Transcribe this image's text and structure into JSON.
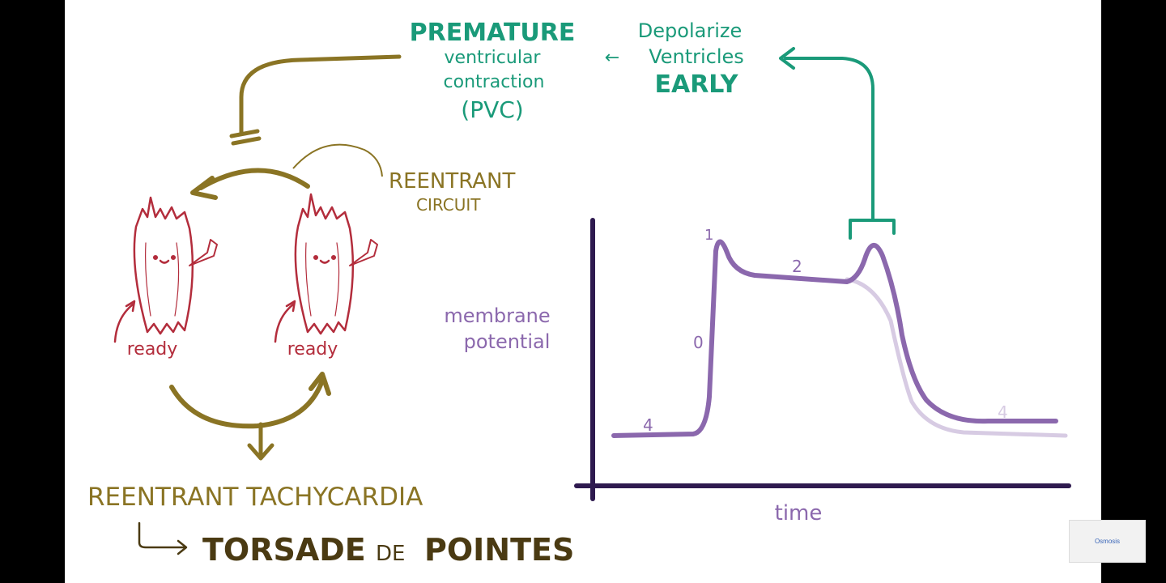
{
  "colors": {
    "teal": "#1a9a79",
    "gold": "#8a7424",
    "crimson": "#b32d3c",
    "purple": "#8b68ad",
    "purple_light": "#d7cbe3",
    "axis": "#2e1a4f",
    "dark_gold": "#4a3a12"
  },
  "pvc": {
    "line1": "PREMATURE",
    "line2": "ventricular",
    "line3": "contraction",
    "line4": "(PVC)"
  },
  "depolarize": {
    "line1": "Depolarize",
    "line2": "Ventricles",
    "line3": "EARLY"
  },
  "arrow_left_glyph": "←",
  "circuit": {
    "label_line1": "REENTRANT",
    "label_line2": "CIRCUIT",
    "cell_left_label": "ready",
    "cell_right_label": "ready"
  },
  "bottom": {
    "reentrant_tachycardia": "REENTRANT TACHYCARDIA",
    "torsade": "TORSADE",
    "de": "DE",
    "pointes": "POINTES"
  },
  "graph": {
    "ylabel_line1": "membrane",
    "ylabel_line2": "potential",
    "xlabel": "time",
    "phase_0": "0",
    "phase_1": "1",
    "phase_2": "2",
    "phase_4_start": "4",
    "phase_4_end": "4"
  },
  "watermark": "Osmosis"
}
